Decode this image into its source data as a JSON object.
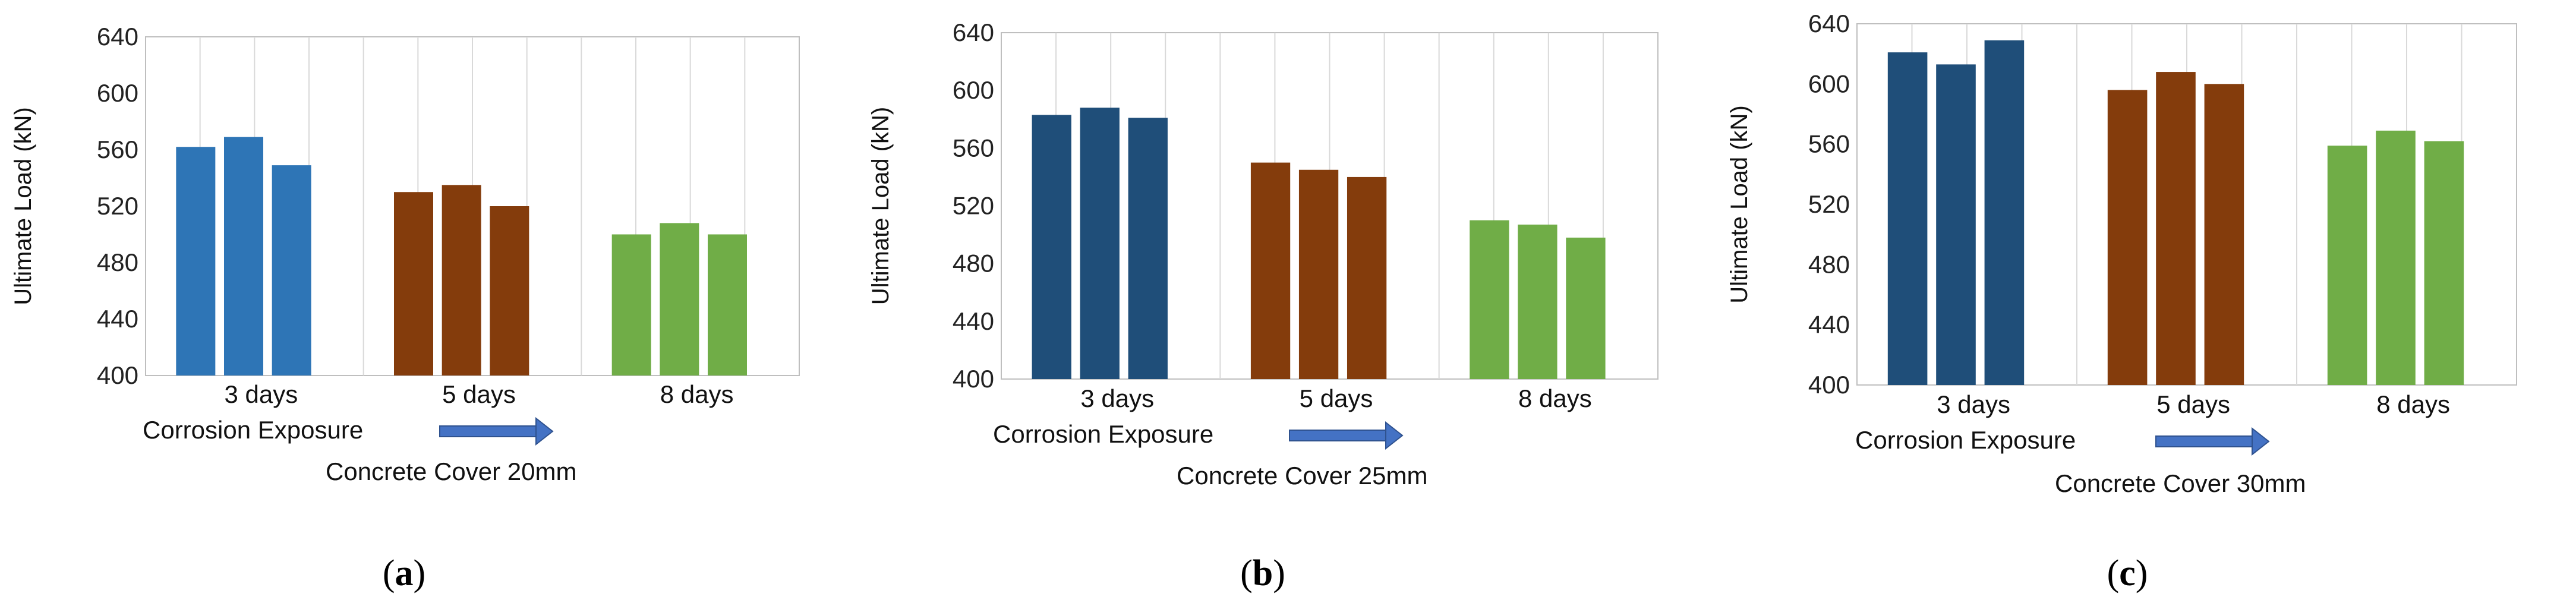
{
  "figure": {
    "panels": [
      {
        "id": "a",
        "letter": "a",
        "exposure_label": "Corrosion Exposure",
        "cover_label": "Concrete Cover 20mm"
      },
      {
        "id": "b",
        "letter": "b",
        "exposure_label": "Corrosion Exposure",
        "cover_label": "Concrete Cover 25mm"
      },
      {
        "id": "c",
        "letter": "c",
        "exposure_label": "Corrosion Exposure",
        "cover_label": "Concrete Cover 30mm"
      }
    ]
  },
  "chart_data": [
    {
      "type": "bar",
      "title": "",
      "xlabel": "",
      "ylabel": "Ultimate Load (kN)",
      "ylim": [
        400,
        640
      ],
      "yticks": [
        400,
        440,
        480,
        520,
        560,
        600,
        640
      ],
      "grid": "vertical",
      "categories": [
        "3 days",
        "5 days",
        "8 days"
      ],
      "groups": [
        {
          "category": "3 days",
          "color": "#2E75B6",
          "values": [
            562,
            569,
            549
          ]
        },
        {
          "category": "5 days",
          "color": "#843C0C",
          "values": [
            530,
            535,
            520
          ]
        },
        {
          "category": "8 days",
          "color": "#70AD47",
          "values": [
            500,
            508,
            500
          ]
        }
      ]
    },
    {
      "type": "bar",
      "title": "",
      "xlabel": "",
      "ylabel": "Ultimate Load (kN)",
      "ylim": [
        400,
        640
      ],
      "yticks": [
        400,
        440,
        480,
        520,
        560,
        600,
        640
      ],
      "grid": "vertical",
      "categories": [
        "3 days",
        "5 days",
        "8 days"
      ],
      "groups": [
        {
          "category": "3 days",
          "color": "#1F4E79",
          "values": [
            583,
            588,
            581
          ]
        },
        {
          "category": "5 days",
          "color": "#843C0C",
          "values": [
            550,
            545,
            540
          ]
        },
        {
          "category": "8 days",
          "color": "#70AD47",
          "values": [
            510,
            507,
            498
          ]
        }
      ]
    },
    {
      "type": "bar",
      "title": "",
      "xlabel": "",
      "ylabel": "Ultimate Load (kN)",
      "ylim": [
        400,
        640
      ],
      "yticks": [
        400,
        440,
        480,
        520,
        560,
        600,
        640
      ],
      "grid": "vertical",
      "categories": [
        "3 days",
        "5 days",
        "8 days"
      ],
      "groups": [
        {
          "category": "3 days",
          "color": "#1F4E79",
          "values": [
            621,
            613,
            629
          ]
        },
        {
          "category": "5 days",
          "color": "#843C0C",
          "values": [
            596,
            608,
            600
          ]
        },
        {
          "category": "8 days",
          "color": "#70AD47",
          "values": [
            559,
            569,
            562
          ]
        }
      ]
    }
  ]
}
